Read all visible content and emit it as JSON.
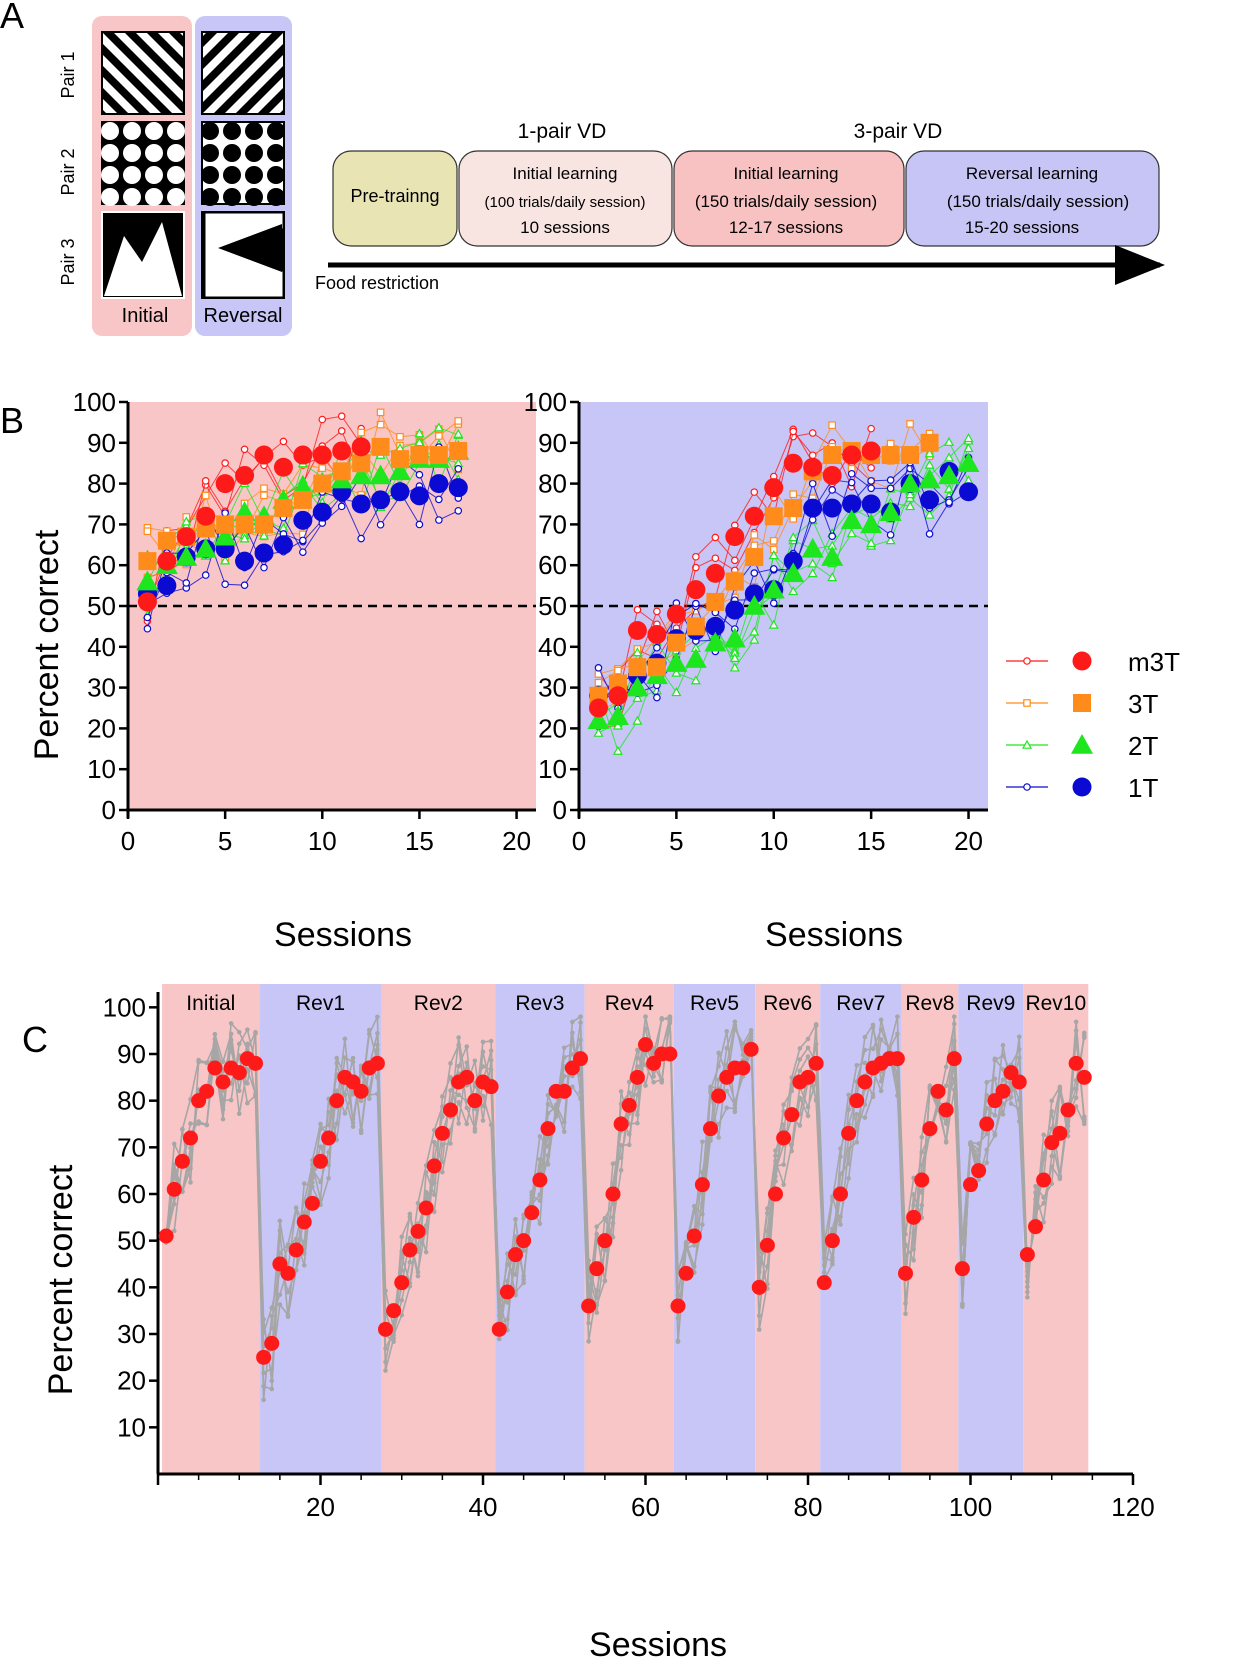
{
  "panelA": {
    "label": "A",
    "pair_labels": [
      "Pair 1",
      "Pair 2",
      "Pair 3"
    ],
    "initial_label": "Initial",
    "reversal_label": "Reversal",
    "header_1pair": "1-pair VD",
    "header_3pair": "3-pair VD",
    "boxes": [
      {
        "line1": "Pre-trainng",
        "line2": "",
        "line3": "",
        "color": "#e8e4b4"
      },
      {
        "line1": "Initial learning",
        "line2": "(100 trials/daily session)",
        "line3": "10 sessions",
        "color": "#f8e4e0"
      },
      {
        "line1": "Initial learning",
        "line2": "(150 trials/daily session)",
        "line3": "12-17 sessions",
        "color": "#f9c2c2"
      },
      {
        "line1": "Reversal learning",
        "line2": "(150 trials/daily session)",
        "line3": "15-20 sessions",
        "color": "#c7c5f5"
      }
    ],
    "food_restriction": "Food restriction"
  },
  "panelB": {
    "label": "B",
    "ylabel": "Percent correct",
    "xlabel": "Sessions",
    "legend": [
      "m3T",
      "3T",
      "2T",
      "1T"
    ]
  },
  "panelC": {
    "label": "C",
    "ylabel": "Percent correct",
    "xlabel": "Sessions"
  },
  "colors": {
    "pink": "#f9c6c8",
    "lavender": "#c7c6f7",
    "m3T": "#ff1a1a",
    "3T": "#ff8c1a",
    "2T": "#1ee61e",
    "1T": "#0a0ad2",
    "grey": "#a6a6a6"
  },
  "chart_data": [
    {
      "id": "B-initial",
      "type": "scatter",
      "title": "Initial learning",
      "xlabel": "Sessions",
      "ylabel": "Percent correct",
      "xlim": [
        0,
        21
      ],
      "ylim": [
        0,
        100
      ],
      "xticks": [
        0,
        5,
        10,
        15,
        20
      ],
      "yticks": [
        0,
        10,
        20,
        30,
        40,
        50,
        60,
        70,
        80,
        90,
        100
      ],
      "chance_level": 50,
      "series": [
        {
          "name": "m3T",
          "x": [
            1,
            2,
            3,
            4,
            5,
            6,
            7,
            8,
            9,
            10,
            11,
            12
          ],
          "values": [
            51,
            61,
            67,
            72,
            80,
            82,
            87,
            84,
            87,
            87,
            88,
            89
          ]
        },
        {
          "name": "3T",
          "x": [
            1,
            2,
            3,
            4,
            5,
            6,
            7,
            8,
            9,
            10,
            11,
            12,
            13,
            14,
            15,
            16,
            17
          ],
          "values": [
            61,
            66,
            67,
            69,
            70,
            70,
            70,
            74,
            76,
            80,
            83,
            85,
            89,
            86,
            87,
            87,
            88
          ]
        },
        {
          "name": "2T",
          "x": [
            1,
            2,
            3,
            4,
            5,
            6,
            7,
            8,
            9,
            10,
            11,
            12,
            13,
            14,
            15,
            16,
            17
          ],
          "values": [
            56,
            60,
            62,
            64,
            67,
            73,
            72,
            76,
            79,
            80,
            81,
            82,
            82,
            83,
            86,
            86,
            88
          ]
        },
        {
          "name": "1T",
          "x": [
            1,
            2,
            3,
            4,
            5,
            6,
            7,
            8,
            9,
            10,
            11,
            12,
            13,
            14,
            15,
            16,
            17
          ],
          "values": [
            53,
            55,
            62,
            64,
            64,
            61,
            63,
            65,
            71,
            73,
            78,
            75,
            76,
            78,
            77,
            80,
            79
          ]
        }
      ]
    },
    {
      "id": "B-reversal",
      "type": "scatter",
      "title": "Reversal learning",
      "xlabel": "Sessions",
      "ylabel": "Percent correct",
      "xlim": [
        0,
        21
      ],
      "ylim": [
        0,
        100
      ],
      "xticks": [
        0,
        5,
        10,
        15,
        20
      ],
      "yticks": [
        0,
        10,
        20,
        30,
        40,
        50,
        60,
        70,
        80,
        90,
        100
      ],
      "chance_level": 50,
      "series": [
        {
          "name": "m3T",
          "x": [
            1,
            2,
            3,
            4,
            5,
            6,
            7,
            8,
            9,
            10,
            11,
            12,
            13,
            14,
            15
          ],
          "values": [
            25,
            28,
            44,
            43,
            48,
            54,
            58,
            67,
            72,
            79,
            85,
            84,
            82,
            87,
            88
          ]
        },
        {
          "name": "3T",
          "x": [
            1,
            2,
            3,
            4,
            5,
            6,
            7,
            8,
            9,
            10,
            11,
            12,
            13,
            14,
            15,
            16,
            17,
            18
          ],
          "values": [
            28,
            31,
            35,
            35,
            41,
            45,
            51,
            56,
            62,
            72,
            74,
            83,
            87,
            88,
            87,
            87,
            87,
            90
          ]
        },
        {
          "name": "2T",
          "x": [
            1,
            2,
            3,
            4,
            5,
            6,
            7,
            8,
            9,
            10,
            11,
            12,
            13,
            14,
            15,
            16,
            17,
            18,
            19,
            20
          ],
          "values": [
            22,
            23,
            30,
            33,
            36,
            37,
            41,
            42,
            50,
            54,
            58,
            64,
            62,
            71,
            70,
            73,
            80,
            81,
            82,
            85
          ]
        },
        {
          "name": "1T",
          "x": [
            1,
            2,
            3,
            4,
            5,
            6,
            7,
            8,
            9,
            10,
            11,
            12,
            13,
            14,
            15,
            16,
            17,
            18,
            19,
            20
          ],
          "values": [
            28,
            30,
            33,
            36,
            42,
            44,
            45,
            49,
            53,
            54,
            61,
            74,
            74,
            75,
            75,
            73,
            80,
            76,
            83,
            78
          ]
        }
      ]
    },
    {
      "id": "C-serial-reversal",
      "type": "scatter",
      "xlabel": "Sessions",
      "ylabel": "Percent correct",
      "xlim": [
        0,
        120
      ],
      "ylim": [
        0,
        105
      ],
      "xticks": [
        20,
        40,
        60,
        80,
        100,
        120
      ],
      "yticks": [
        10,
        20,
        30,
        40,
        50,
        60,
        70,
        80,
        90,
        100
      ],
      "phases": [
        {
          "label": "Initial",
          "start": 0.5,
          "end": 12.5,
          "points": [
            51,
            61,
            67,
            72,
            80,
            82,
            87,
            84,
            87,
            86,
            89,
            88
          ]
        },
        {
          "label": "Rev1",
          "start": 12.5,
          "end": 27.5,
          "points": [
            25,
            28,
            45,
            43,
            48,
            54,
            58,
            67,
            72,
            80,
            85,
            84,
            82,
            87,
            88
          ]
        },
        {
          "label": "Rev2",
          "start": 27.5,
          "end": 41.5,
          "points": [
            31,
            35,
            41,
            48,
            52,
            57,
            66,
            73,
            78,
            84,
            85,
            80,
            84,
            83
          ]
        },
        {
          "label": "Rev3",
          "start": 41.5,
          "end": 52.5,
          "points": [
            31,
            39,
            47,
            50,
            56,
            63,
            74,
            82,
            82,
            87,
            89
          ]
        },
        {
          "label": "Rev4",
          "start": 52.5,
          "end": 63.5,
          "points": [
            36,
            44,
            50,
            60,
            75,
            79,
            85,
            92,
            88,
            90,
            90
          ]
        },
        {
          "label": "Rev5",
          "start": 63.5,
          "end": 73.5,
          "points": [
            36,
            43,
            51,
            62,
            74,
            81,
            85,
            87,
            87,
            91
          ]
        },
        {
          "label": "Rev6",
          "start": 73.5,
          "end": 81.5,
          "points": [
            40,
            49,
            60,
            72,
            77,
            84,
            85,
            88
          ]
        },
        {
          "label": "Rev7",
          "start": 81.5,
          "end": 91.5,
          "points": [
            41,
            50,
            60,
            73,
            80,
            84,
            87,
            88,
            89,
            89
          ]
        },
        {
          "label": "Rev8",
          "start": 91.5,
          "end": 98.5,
          "points": [
            43,
            55,
            63,
            74,
            82,
            78,
            89
          ]
        },
        {
          "label": "Rev9",
          "start": 98.5,
          "end": 106.5,
          "points": [
            44,
            62,
            65,
            75,
            80,
            82,
            86,
            84
          ]
        },
        {
          "label": "Rev10",
          "start": 106.5,
          "end": 114.5,
          "points": [
            47,
            53,
            63,
            71,
            73,
            78,
            88,
            85
          ]
        }
      ]
    }
  ]
}
